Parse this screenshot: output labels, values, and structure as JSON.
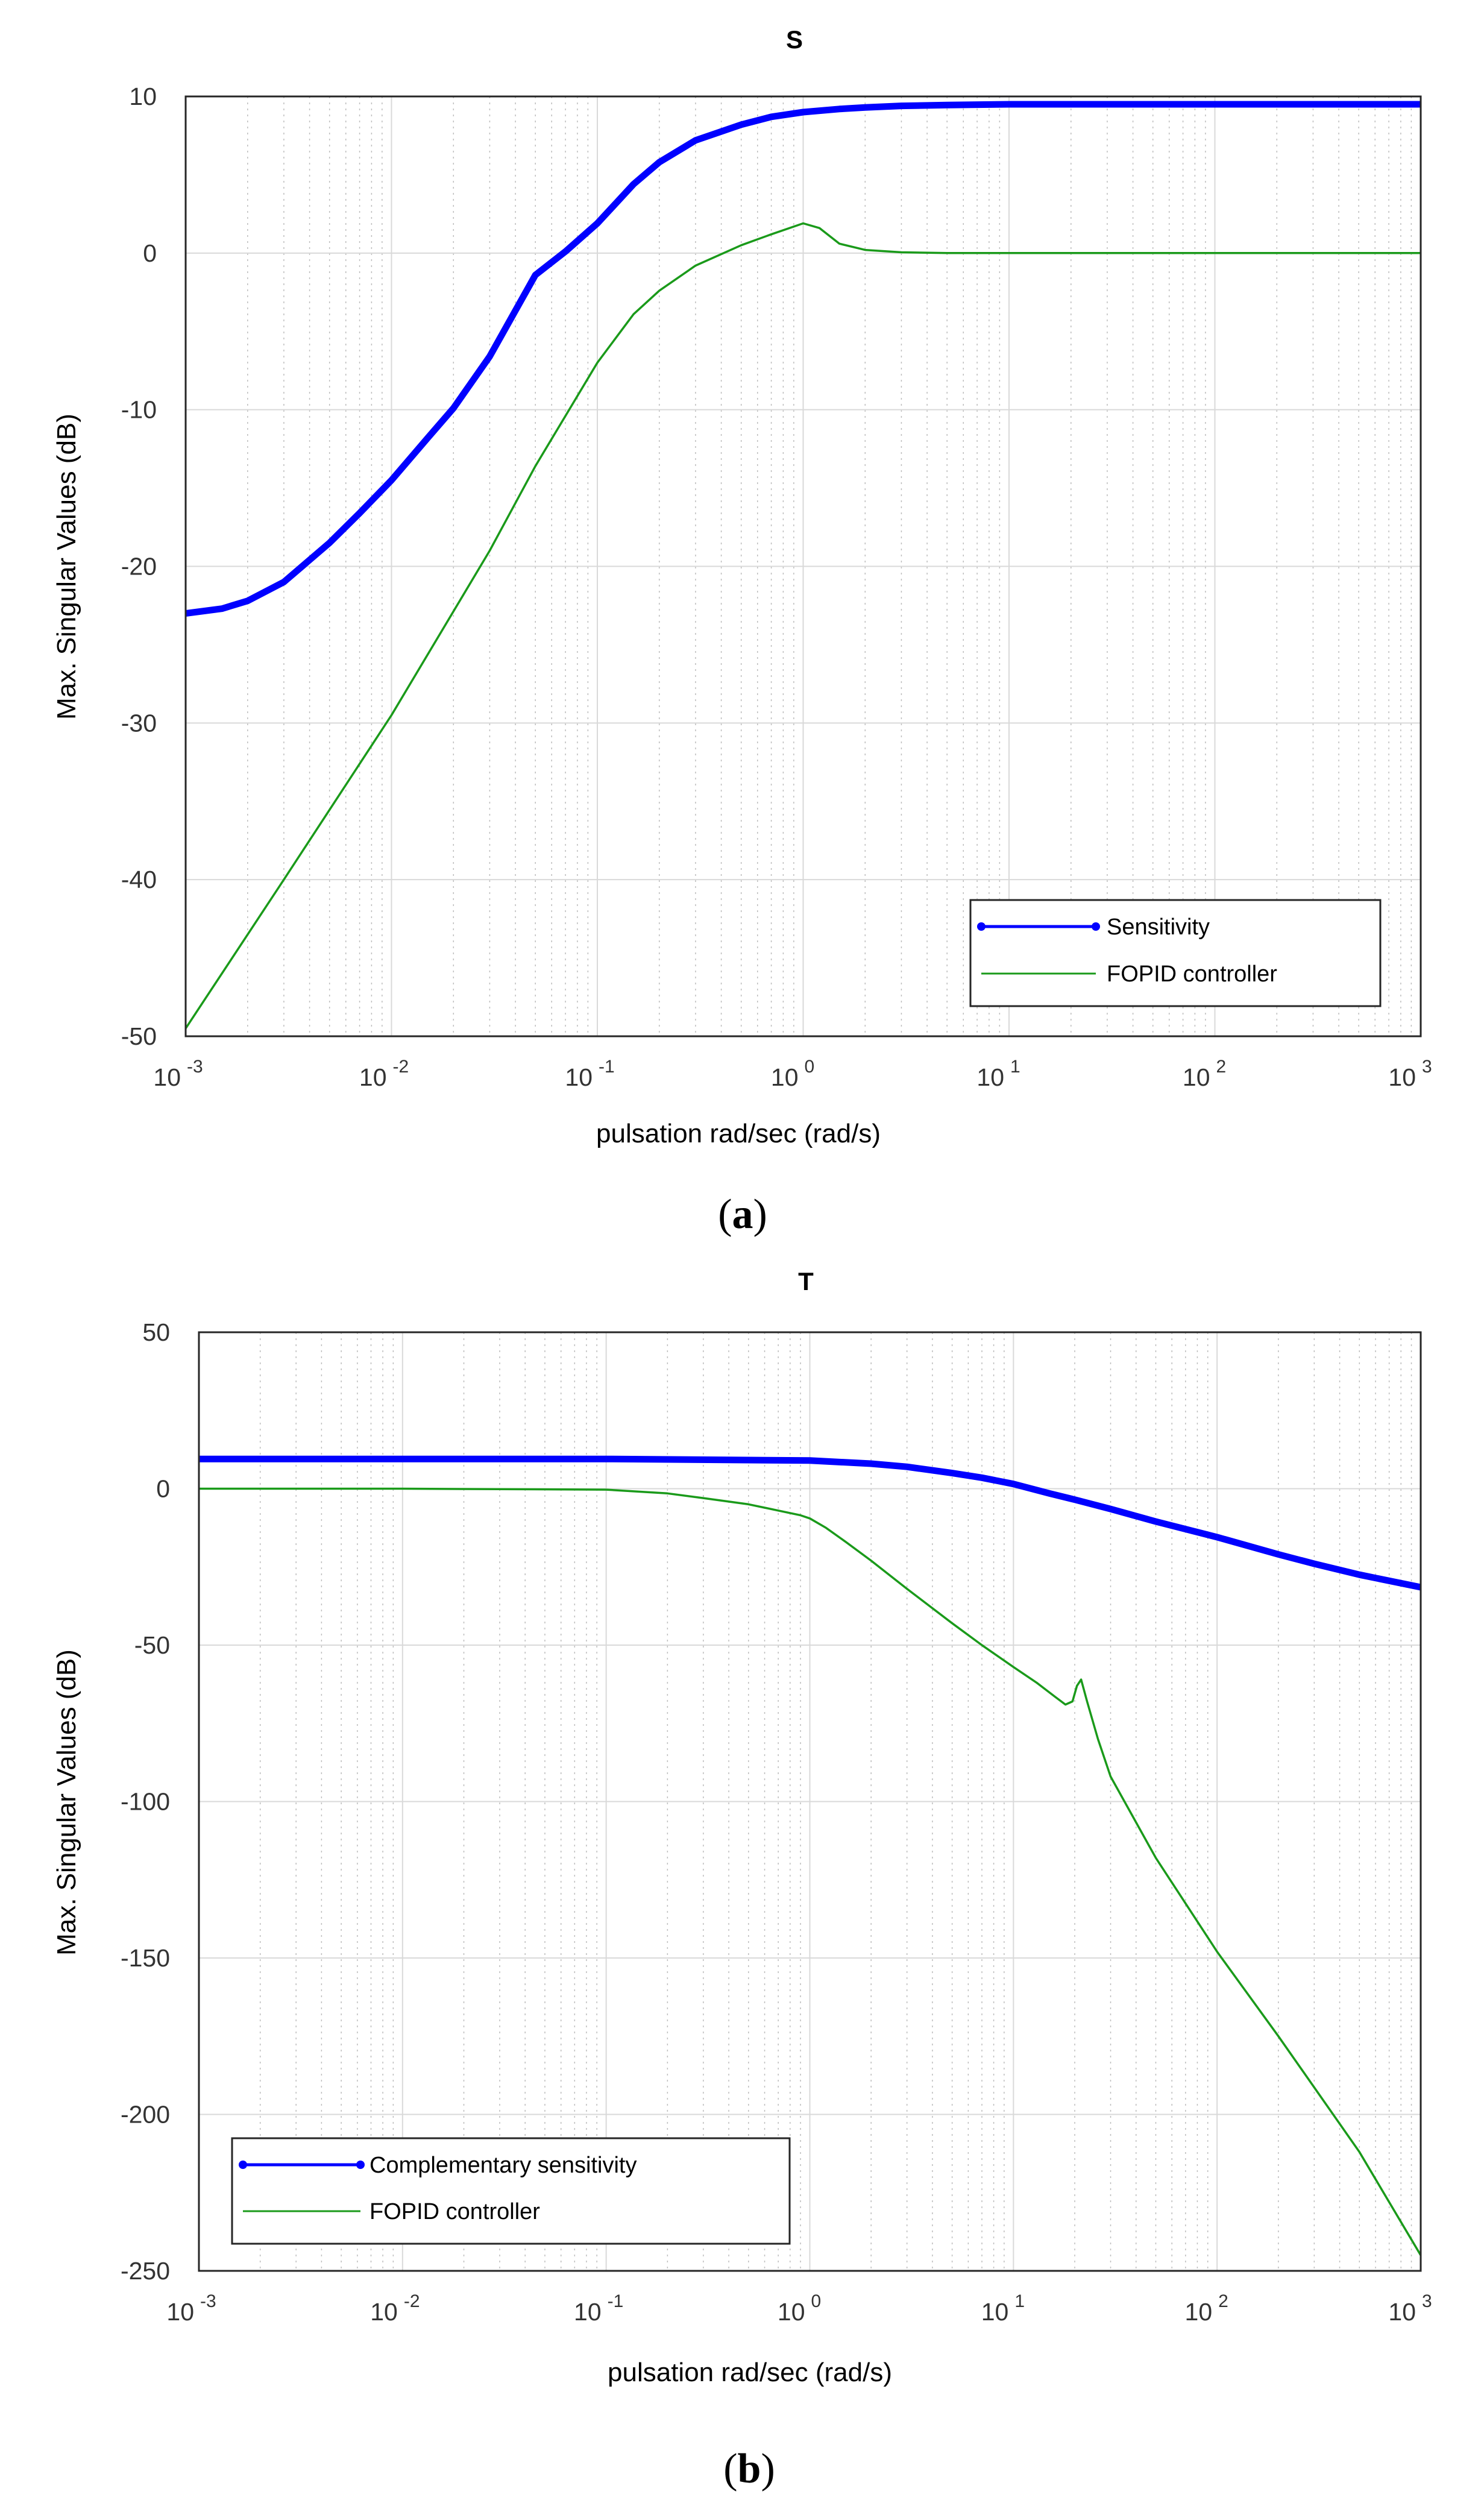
{
  "colors": {
    "sensitivity": "#0000ff",
    "fopid": "#1a9a1a",
    "grid": "#d9d9d9",
    "minor_grid": "#bdbdbd"
  },
  "chart_data": [
    {
      "type": "line",
      "title": "S",
      "caption_letter": "a",
      "xlabel": "pulsation rad/sec (rad/s)",
      "ylabel": "Max. Singular Values (dB)",
      "xscale": "log",
      "xlim": [
        0.001,
        1000
      ],
      "ylim": [
        -50,
        10
      ],
      "grid": true,
      "xticks": [
        {
          "base": "10",
          "exp": "-3",
          "value": 0.001
        },
        {
          "base": "10",
          "exp": "-2",
          "value": 0.01
        },
        {
          "base": "10",
          "exp": "-1",
          "value": 0.1
        },
        {
          "base": "10",
          "exp": "0",
          "value": 1
        },
        {
          "base": "10",
          "exp": "1",
          "value": 10
        },
        {
          "base": "10",
          "exp": "2",
          "value": 100
        },
        {
          "base": "10",
          "exp": "3",
          "value": 1000
        }
      ],
      "yticks": [
        {
          "label": "10",
          "value": 10
        },
        {
          "label": "0",
          "value": 0
        },
        {
          "label": "-10",
          "value": -10
        },
        {
          "label": "-20",
          "value": -20
        },
        {
          "label": "-30",
          "value": -30
        },
        {
          "label": "-40",
          "value": -40
        },
        {
          "label": "-50",
          "value": -50
        }
      ],
      "legend": {
        "location": "bottom-right"
      },
      "series": [
        {
          "name": "Sensitivity",
          "style": "thick",
          "x": [
            0.001,
            0.0015,
            0.002,
            0.003,
            0.005,
            0.007,
            0.01,
            0.015,
            0.02,
            0.03,
            0.05,
            0.07,
            0.1,
            0.15,
            0.2,
            0.3,
            0.5,
            0.7,
            1,
            1.5,
            2,
            3,
            5,
            10,
            100,
            1000
          ],
          "y": [
            -23.0,
            -22.7,
            -22.2,
            -21.0,
            -18.5,
            -16.6,
            -14.5,
            -11.8,
            -9.9,
            -6.6,
            -1.4,
            0.1,
            1.9,
            4.4,
            5.8,
            7.2,
            8.2,
            8.7,
            9.0,
            9.2,
            9.3,
            9.4,
            9.45,
            9.5,
            9.5,
            9.5
          ]
        },
        {
          "name": "FOPID controller",
          "style": "thin",
          "x": [
            0.001,
            0.003,
            0.01,
            0.03,
            0.05,
            0.1,
            0.15,
            0.2,
            0.3,
            0.5,
            0.7,
            1,
            1.2,
            1.5,
            2,
            3,
            5,
            10,
            100,
            1000
          ],
          "y": [
            -49.5,
            -40.0,
            -29.5,
            -19.0,
            -13.6,
            -7.0,
            -3.9,
            -2.4,
            -0.8,
            0.5,
            1.2,
            1.9,
            1.6,
            0.6,
            0.2,
            0.05,
            0,
            0,
            0,
            0
          ]
        }
      ]
    },
    {
      "type": "line",
      "title": "T",
      "caption_letter": "b",
      "xlabel": "pulsation rad/sec (rad/s)",
      "ylabel": "Max. Singular Values (dB)",
      "xscale": "log",
      "xlim": [
        0.001,
        1000
      ],
      "ylim": [
        -250,
        50
      ],
      "grid": true,
      "xticks": [
        {
          "base": "10",
          "exp": "-3",
          "value": 0.001
        },
        {
          "base": "10",
          "exp": "-2",
          "value": 0.01
        },
        {
          "base": "10",
          "exp": "-1",
          "value": 0.1
        },
        {
          "base": "10",
          "exp": "0",
          "value": 1
        },
        {
          "base": "10",
          "exp": "1",
          "value": 10
        },
        {
          "base": "10",
          "exp": "2",
          "value": 100
        },
        {
          "base": "10",
          "exp": "3",
          "value": 1000
        }
      ],
      "yticks": [
        {
          "label": "50",
          "value": 50
        },
        {
          "label": "0",
          "value": 0
        },
        {
          "label": "-50",
          "value": -50
        },
        {
          "label": "-100",
          "value": -100
        },
        {
          "label": "-150",
          "value": -150
        },
        {
          "label": "-200",
          "value": -200
        },
        {
          "label": "-250",
          "value": -250
        }
      ],
      "legend": {
        "location": "bottom-left"
      },
      "series": [
        {
          "name": "Complementary sensitivity",
          "style": "thick",
          "x": [
            0.001,
            0.01,
            0.1,
            1,
            2,
            3,
            5,
            7,
            10,
            15,
            20,
            30,
            50,
            100,
            200,
            300,
            500,
            1000
          ],
          "y": [
            9.5,
            9.5,
            9.5,
            9.0,
            8.0,
            7.0,
            5.0,
            3.5,
            1.5,
            -1.5,
            -3.5,
            -6.5,
            -10.5,
            -15.5,
            -21.0,
            -24.0,
            -27.5,
            -31.5
          ]
        },
        {
          "name": "FOPID controller",
          "style": "thin",
          "x": [
            0.001,
            0.01,
            0.1,
            0.2,
            0.3,
            0.5,
            0.7,
            0.9,
            1,
            1.2,
            1.5,
            2,
            3,
            5,
            7,
            10,
            13,
            16,
            18,
            19.5,
            20.5,
            21.5,
            23,
            26,
            30,
            50,
            100,
            200,
            500,
            1000
          ],
          "y": [
            0,
            0,
            -0.3,
            -1.5,
            -3.0,
            -5.0,
            -7.0,
            -8.5,
            -9.5,
            -12.5,
            -17.0,
            -23.0,
            -32.0,
            -43.0,
            -50.0,
            -57.0,
            -62.0,
            -66.5,
            -69.0,
            -68.0,
            -63.0,
            -61.0,
            -68.0,
            -80.0,
            -92.0,
            -118.0,
            -148.0,
            -175.0,
            -212.0,
            -245.0
          ]
        }
      ]
    }
  ]
}
